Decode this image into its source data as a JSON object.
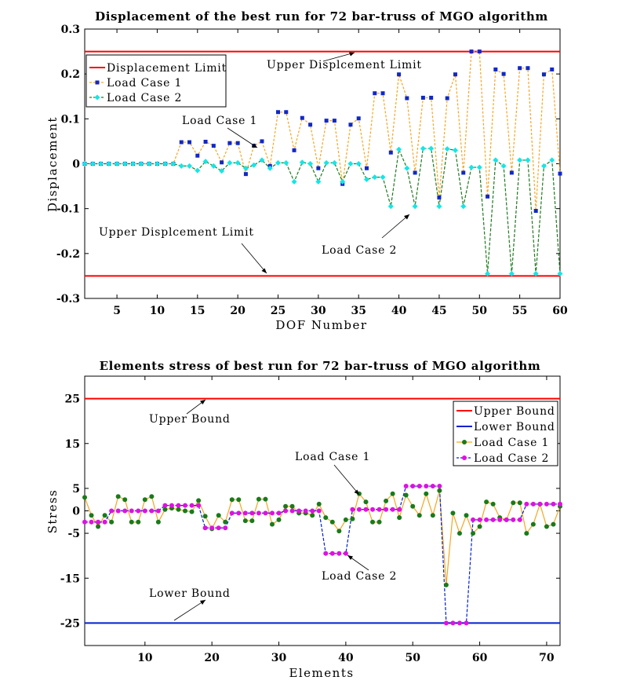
{
  "chart_data": [
    {
      "type": "line",
      "title": "Displacement of the best run for 72 bar-truss of MGO algorithm",
      "xlabel": "DOF Number",
      "ylabel": "Displacement",
      "xlim": [
        1,
        60
      ],
      "ylim": [
        -0.3,
        0.3
      ],
      "xticks": [
        5,
        10,
        15,
        20,
        25,
        30,
        35,
        40,
        45,
        50,
        55,
        60
      ],
      "yticks": [
        -0.3,
        -0.2,
        -0.1,
        0,
        0.1,
        0.2,
        0.3
      ],
      "ytick_labels": [
        "-0.3",
        "-0.2",
        "-0.1",
        "0",
        "0.1",
        "0.2",
        "0.3"
      ],
      "limit_lines": [
        {
          "name": "Displacement Limit",
          "value": 0.25,
          "color": "#ff0000"
        },
        {
          "name": "Displacement Limit (lower)",
          "value": -0.25,
          "color": "#ff0000"
        }
      ],
      "legend": {
        "position": "top-left",
        "entries": [
          "Displacement Limit",
          "Load Case 1",
          "Load Case 2"
        ]
      },
      "x": [
        1,
        2,
        3,
        4,
        5,
        6,
        7,
        8,
        9,
        10,
        11,
        12,
        13,
        14,
        15,
        16,
        17,
        18,
        19,
        20,
        21,
        22,
        23,
        24,
        25,
        26,
        27,
        28,
        29,
        30,
        31,
        32,
        33,
        34,
        35,
        36,
        37,
        38,
        39,
        40,
        41,
        42,
        43,
        44,
        45,
        46,
        47,
        48,
        49,
        50,
        51,
        52,
        53,
        54,
        55,
        56,
        57,
        58,
        59,
        60
      ],
      "series": [
        {
          "name": "Load Case 1",
          "line_color": "#f5a623",
          "marker_color": "#1028c8",
          "marker": "square",
          "values": [
            0,
            0,
            0,
            0,
            0,
            0,
            0,
            0,
            0,
            0,
            0,
            0,
            0.048,
            0.048,
            0.018,
            0.049,
            0.04,
            0.003,
            0.046,
            0.046,
            -0.023,
            0.04,
            0.05,
            -0.005,
            0.115,
            0.115,
            0.03,
            0.102,
            0.087,
            -0.01,
            0.096,
            0.096,
            -0.045,
            0.087,
            0.101,
            -0.01,
            0.157,
            0.157,
            0.025,
            0.199,
            0.146,
            -0.02,
            0.147,
            0.147,
            -0.075,
            0.146,
            0.199,
            -0.02,
            0.25,
            0.25,
            -0.073,
            0.21,
            0.2,
            -0.02,
            0.213,
            0.213,
            -0.105,
            0.199,
            0.21,
            -0.022
          ]
        },
        {
          "name": "Load Case 2",
          "line_color": "#1e7a1e",
          "marker_color": "#14e6e6",
          "marker": "diamond",
          "values": [
            0,
            0,
            0,
            0,
            0,
            0,
            0,
            0,
            0,
            0,
            0,
            0,
            -0.005,
            -0.005,
            -0.015,
            0.005,
            -0.005,
            -0.016,
            0.002,
            0.002,
            -0.01,
            -0.003,
            0.008,
            -0.01,
            0.002,
            0.002,
            -0.04,
            0.003,
            0,
            -0.04,
            0.002,
            0.002,
            -0.04,
            0,
            0,
            -0.035,
            -0.03,
            -0.03,
            -0.095,
            0.032,
            -0.01,
            -0.095,
            0.034,
            0.034,
            -0.095,
            0.033,
            0.03,
            -0.095,
            -0.008,
            -0.008,
            -0.245,
            0.008,
            -0.005,
            -0.245,
            0.008,
            0.008,
            -0.245,
            -0.005,
            0.008,
            -0.245
          ]
        }
      ],
      "annotations": [
        {
          "text": "Upper Displcement Limit",
          "target": "upper limit line"
        },
        {
          "text": "Load Case 1",
          "target": "Load Case 1 series"
        },
        {
          "text": "Upper Displcement Limit",
          "target": "lower limit line"
        },
        {
          "text": "Load Case 2",
          "target": "Load Case 2 series"
        }
      ]
    },
    {
      "type": "line",
      "title": "Elements stress of best run for 72 bar-truss of MGO algorithm",
      "xlabel": "Elements",
      "ylabel": "Stress",
      "xlim": [
        1,
        72
      ],
      "ylim": [
        -30,
        30
      ],
      "xticks": [
        10,
        20,
        30,
        40,
        50,
        60,
        70
      ],
      "yticks": [
        -25,
        -15,
        -5,
        0,
        5,
        15,
        25
      ],
      "ytick_labels": [
        "-25",
        "-15",
        "-5",
        "0",
        "5",
        "15",
        "25"
      ],
      "limit_lines": [
        {
          "name": "Upper Bound",
          "value": 25,
          "color": "#ff0000"
        },
        {
          "name": "Lower Bound",
          "value": -25,
          "color": "#0020d0"
        }
      ],
      "legend": {
        "position": "top-right",
        "entries": [
          "Upper Bound",
          "Lower Bound",
          "Load Case 1",
          "Load Case 2"
        ]
      },
      "x": [
        1,
        2,
        3,
        4,
        5,
        6,
        7,
        8,
        9,
        10,
        11,
        12,
        13,
        14,
        15,
        16,
        17,
        18,
        19,
        20,
        21,
        22,
        23,
        24,
        25,
        26,
        27,
        28,
        29,
        30,
        31,
        32,
        33,
        34,
        35,
        36,
        37,
        38,
        39,
        40,
        41,
        42,
        43,
        44,
        45,
        46,
        47,
        48,
        49,
        50,
        51,
        52,
        53,
        54,
        55,
        56,
        57,
        58,
        59,
        60,
        61,
        62,
        63,
        64,
        65,
        66,
        67,
        68,
        69,
        70,
        71,
        72
      ],
      "series": [
        {
          "name": "Load Case 1",
          "line_color": "#f5a623",
          "marker_color": "#1a7a1a",
          "marker": "circle",
          "values": [
            3,
            -1,
            -3.5,
            -1,
            -2.5,
            3.2,
            2.5,
            -2.5,
            -2.5,
            2.5,
            3.2,
            -2.5,
            0.3,
            0.6,
            0.3,
            0,
            -0.2,
            2.3,
            -1.2,
            -4,
            -1,
            -2.5,
            2.5,
            2.5,
            -2.2,
            -2.2,
            2.6,
            2.6,
            -3,
            -2,
            1,
            1,
            -0.5,
            -0.5,
            -1,
            1.5,
            -1.5,
            -2.5,
            -4.5,
            -2,
            -1.8,
            3.8,
            2,
            -2.5,
            -2.5,
            2.2,
            3.8,
            -1.5,
            3.5,
            1,
            -1,
            3.8,
            -1,
            4.5,
            -16.5,
            -0.5,
            -5,
            -1,
            -5,
            -3.5,
            2,
            1.5,
            -1.5,
            -2,
            1.8,
            1.8,
            -5,
            -3,
            1.5,
            -3.5,
            -3,
            1
          ]
        },
        {
          "name": "Load Case 2",
          "line_color": "#0020d0",
          "marker_color": "#e010e0",
          "marker": "circle",
          "values": [
            -2.5,
            -2.5,
            -2.5,
            -2.5,
            0,
            0,
            0,
            0,
            0,
            0,
            0,
            0,
            1.2,
            1.2,
            1.2,
            1.2,
            1.2,
            1.2,
            -3.8,
            -3.8,
            -3.8,
            -3.8,
            -0.5,
            -0.5,
            -0.5,
            -0.5,
            -0.5,
            -0.5,
            -0.5,
            -0.5,
            0,
            0,
            0,
            0,
            0,
            0,
            -9.5,
            -9.5,
            -9.5,
            -9.5,
            0.3,
            0.3,
            0.3,
            0.3,
            0.3,
            0.3,
            0.3,
            0.3,
            5.5,
            5.5,
            5.5,
            5.5,
            5.5,
            5.5,
            -25,
            -25,
            -25,
            -25,
            -2,
            -2,
            -2,
            -2,
            -2,
            -2,
            -2,
            -2,
            1.5,
            1.5,
            1.5,
            1.5,
            1.5,
            1.5
          ]
        }
      ],
      "annotations": [
        {
          "text": "Upper Bound",
          "target": "upper bound line"
        },
        {
          "text": "Load Case 1",
          "target": "Load Case 1 series"
        },
        {
          "text": "Load Case 2",
          "target": "Load Case 2 series"
        },
        {
          "text": "Lower Bound",
          "target": "lower bound line"
        }
      ]
    }
  ]
}
